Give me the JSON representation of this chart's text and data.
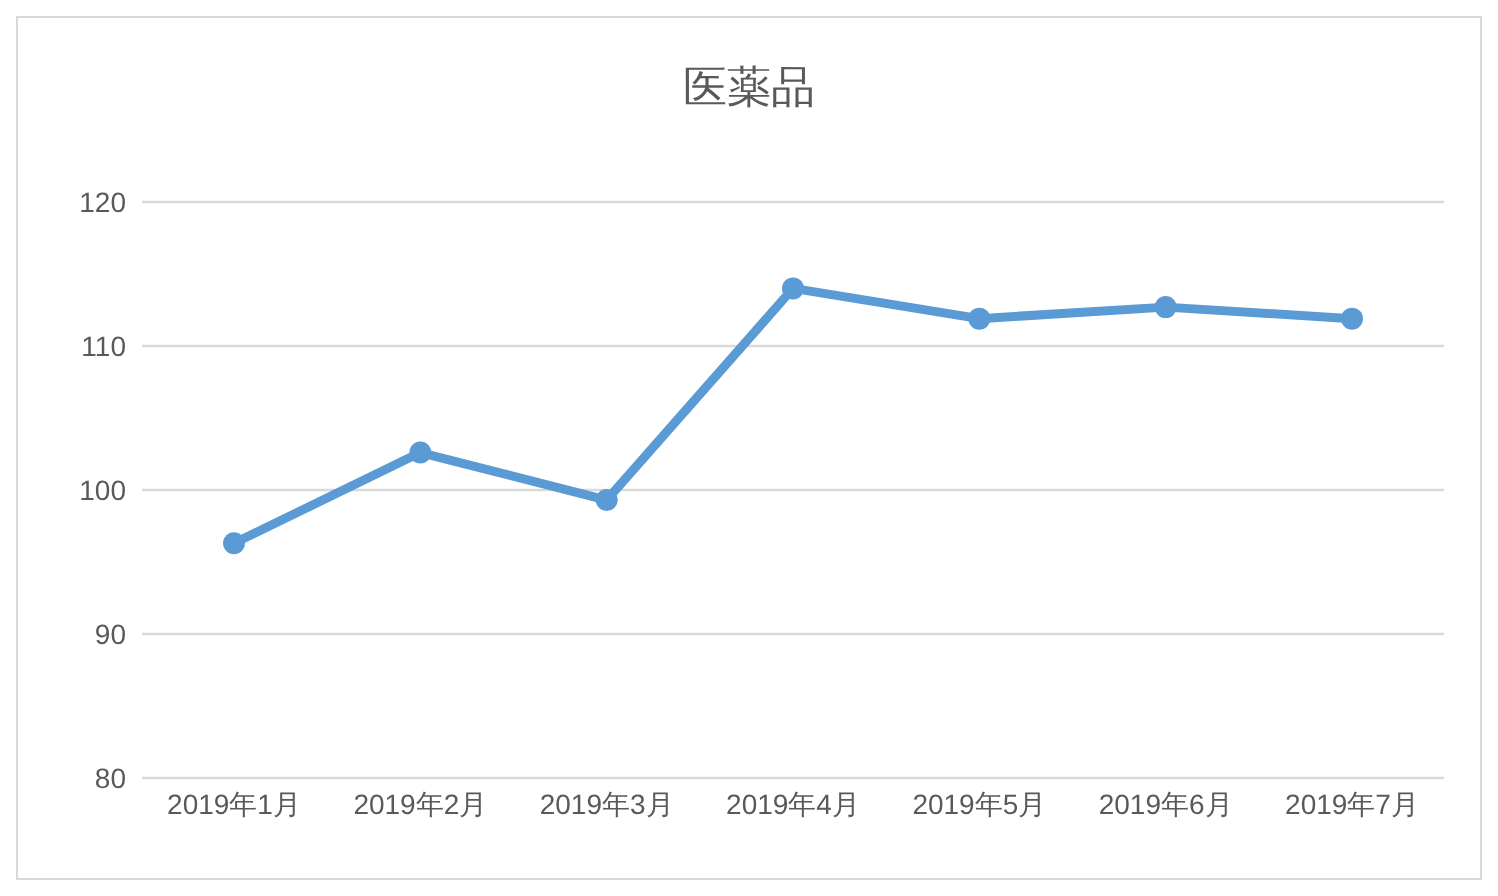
{
  "chart_data": {
    "type": "line",
    "title": "医薬品",
    "categories": [
      "2019年1月",
      "2019年2月",
      "2019年3月",
      "2019年4月",
      "2019年5月",
      "2019年6月",
      "2019年7月"
    ],
    "series": [
      {
        "color": "#5b9bd5",
        "values": [
          96.3,
          102.6,
          99.3,
          114.0,
          111.9,
          112.7,
          111.9
        ]
      }
    ],
    "ylim": [
      80,
      120
    ],
    "yticks": [
      80,
      90,
      100,
      110,
      120
    ],
    "grid": "y",
    "legend": false,
    "marker": "circle",
    "line_style": "solid"
  }
}
